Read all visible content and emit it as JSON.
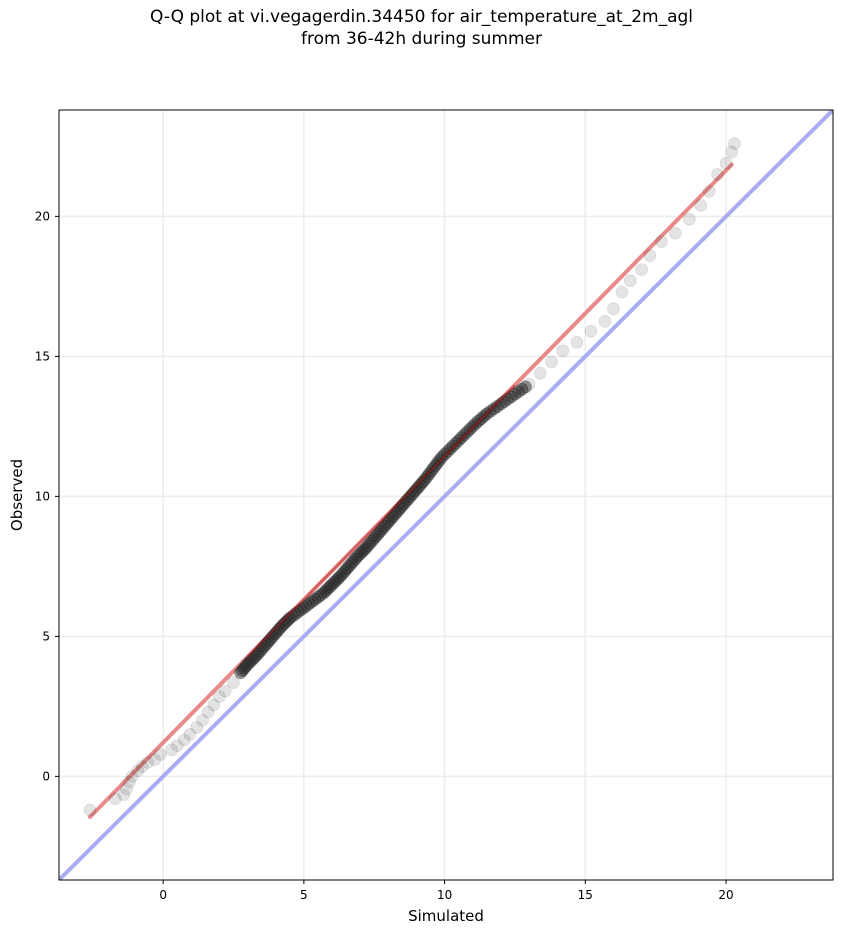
{
  "chart_data": {
    "type": "scatter",
    "title_lines": [
      "Q-Q plot at vi.vegagerdin.34450 for air_temperature_at_2m_agl",
      "from 36-42h during summer"
    ],
    "xlabel": "Simulated",
    "ylabel": "Observed",
    "xlim": [
      -3.7,
      23.8
    ],
    "ylim": [
      -3.7,
      23.8
    ],
    "xticks": [
      0,
      5,
      10,
      15,
      20
    ],
    "yticks": [
      0,
      5,
      10,
      15,
      20
    ],
    "grid": true,
    "points": [
      [
        -2.6,
        -1.2
      ],
      [
        -1.7,
        -0.8
      ],
      [
        -1.4,
        -0.65
      ],
      [
        -1.3,
        -0.45
      ],
      [
        -1.2,
        -0.2
      ],
      [
        -1.1,
        0.0
      ],
      [
        -0.9,
        0.2
      ],
      [
        -0.75,
        0.35
      ],
      [
        -0.55,
        0.5
      ],
      [
        -0.3,
        0.6
      ],
      [
        -0.1,
        0.78
      ],
      [
        0.3,
        0.95
      ],
      [
        0.5,
        1.1
      ],
      [
        0.75,
        1.3
      ],
      [
        0.95,
        1.5
      ],
      [
        1.2,
        1.75
      ],
      [
        1.4,
        2.0
      ],
      [
        1.6,
        2.3
      ],
      [
        1.8,
        2.55
      ],
      [
        2.0,
        2.85
      ],
      [
        2.2,
        3.05
      ],
      [
        2.5,
        3.35
      ],
      [
        2.75,
        3.7
      ],
      [
        3.0,
        4.0
      ],
      [
        3.3,
        4.3
      ],
      [
        3.6,
        4.65
      ],
      [
        3.9,
        5.0
      ],
      [
        4.2,
        5.35
      ],
      [
        4.5,
        5.65
      ],
      [
        4.9,
        5.95
      ],
      [
        5.3,
        6.25
      ],
      [
        5.7,
        6.55
      ],
      [
        6.0,
        6.85
      ],
      [
        6.3,
        7.15
      ],
      [
        6.6,
        7.5
      ],
      [
        6.9,
        7.85
      ],
      [
        7.2,
        8.15
      ],
      [
        7.5,
        8.5
      ],
      [
        7.8,
        8.85
      ],
      [
        8.1,
        9.2
      ],
      [
        8.4,
        9.55
      ],
      [
        8.7,
        9.9
      ],
      [
        9.0,
        10.25
      ],
      [
        9.3,
        10.6
      ],
      [
        9.6,
        11.0
      ],
      [
        9.9,
        11.4
      ],
      [
        10.3,
        11.8
      ],
      [
        10.7,
        12.2
      ],
      [
        11.1,
        12.6
      ],
      [
        11.5,
        12.95
      ],
      [
        12.0,
        13.3
      ],
      [
        12.5,
        13.65
      ],
      [
        13.0,
        14.0
      ],
      [
        13.4,
        14.4
      ],
      [
        13.8,
        14.8
      ],
      [
        14.2,
        15.2
      ],
      [
        14.7,
        15.5
      ],
      [
        15.2,
        15.9
      ],
      [
        15.7,
        16.25
      ],
      [
        16.0,
        16.7
      ],
      [
        16.3,
        17.3
      ],
      [
        16.6,
        17.7
      ],
      [
        17.0,
        18.1
      ],
      [
        17.3,
        18.6
      ],
      [
        17.7,
        19.1
      ],
      [
        18.2,
        19.4
      ],
      [
        18.7,
        19.9
      ],
      [
        19.1,
        20.4
      ],
      [
        19.4,
        20.9
      ],
      [
        19.7,
        21.5
      ],
      [
        20.0,
        21.9
      ],
      [
        20.2,
        22.3
      ],
      [
        20.3,
        22.6
      ]
    ],
    "fit_line": [
      [
        -2.6,
        -1.45
      ],
      [
        20.2,
        21.85
      ]
    ],
    "identity_line": [
      [
        -3.7,
        -3.7
      ],
      [
        23.8,
        23.8
      ]
    ],
    "colors": {
      "points": "#222222",
      "fit_line": "#e88a8a",
      "fit_line_dense": "#b01818",
      "identity_line": "#a9acf0",
      "grid": "#ececec",
      "axes": "#000000"
    }
  }
}
